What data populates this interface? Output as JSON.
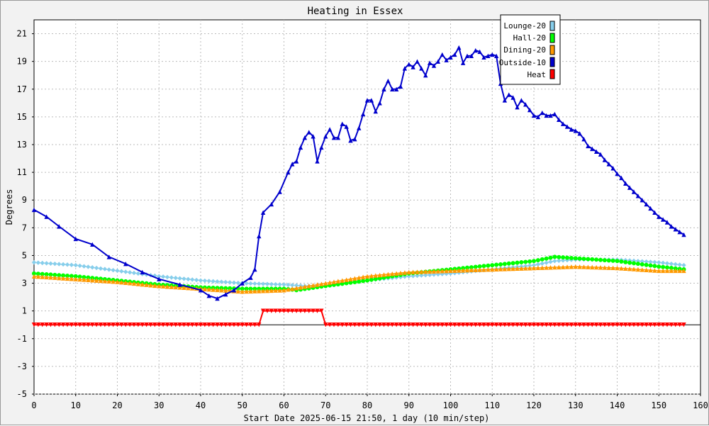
{
  "chart_data": {
    "type": "line",
    "title": "Heating in Essex",
    "xlabel": "Start Date 2025-06-15 21:50, 1 day (10 min/step)",
    "ylabel": "Degrees",
    "xlim": [
      0,
      160
    ],
    "ylim": [
      -5,
      22
    ],
    "x_ticks": [
      0,
      10,
      20,
      30,
      40,
      50,
      60,
      70,
      80,
      90,
      100,
      110,
      120,
      130,
      140,
      150,
      160
    ],
    "y_ticks": [
      -5,
      -3,
      -1,
      1,
      3,
      5,
      7,
      9,
      11,
      13,
      15,
      17,
      19,
      21
    ],
    "grid": true,
    "legend_position": "top-right",
    "series": [
      {
        "name": "Lounge-20",
        "color": "#87ceeb",
        "marker": "diamond",
        "points": [
          [
            0,
            4.5
          ],
          [
            10,
            4.3
          ],
          [
            20,
            3.9
          ],
          [
            30,
            3.5
          ],
          [
            40,
            3.2
          ],
          [
            50,
            3.0
          ],
          [
            60,
            2.9
          ],
          [
            65,
            2.8
          ],
          [
            70,
            2.8
          ],
          [
            80,
            3.2
          ],
          [
            90,
            3.5
          ],
          [
            100,
            3.7
          ],
          [
            110,
            4.0
          ],
          [
            120,
            4.3
          ],
          [
            125,
            4.6
          ],
          [
            130,
            4.7
          ],
          [
            140,
            4.7
          ],
          [
            150,
            4.5
          ],
          [
            156,
            4.3
          ]
        ]
      },
      {
        "name": "Hall-20",
        "color": "#00ff00",
        "marker": "circle",
        "points": [
          [
            0,
            3.7
          ],
          [
            10,
            3.5
          ],
          [
            20,
            3.2
          ],
          [
            30,
            2.9
          ],
          [
            40,
            2.7
          ],
          [
            50,
            2.6
          ],
          [
            60,
            2.6
          ],
          [
            63,
            2.5
          ],
          [
            70,
            2.8
          ],
          [
            80,
            3.2
          ],
          [
            90,
            3.7
          ],
          [
            100,
            4.0
          ],
          [
            110,
            4.3
          ],
          [
            120,
            4.6
          ],
          [
            125,
            4.9
          ],
          [
            130,
            4.8
          ],
          [
            140,
            4.6
          ],
          [
            150,
            4.2
          ],
          [
            156,
            4.0
          ]
        ]
      },
      {
        "name": "Dining-20",
        "color": "#ff9900",
        "marker": "triangle-up",
        "points": [
          [
            0,
            3.5
          ],
          [
            10,
            3.3
          ],
          [
            20,
            3.1
          ],
          [
            30,
            2.8
          ],
          [
            40,
            2.6
          ],
          [
            50,
            2.4
          ],
          [
            60,
            2.5
          ],
          [
            70,
            3.0
          ],
          [
            80,
            3.5
          ],
          [
            90,
            3.8
          ],
          [
            100,
            3.9
          ],
          [
            110,
            4.0
          ],
          [
            120,
            4.1
          ],
          [
            130,
            4.2
          ],
          [
            140,
            4.1
          ],
          [
            150,
            3.9
          ],
          [
            156,
            3.9
          ]
        ]
      },
      {
        "name": "Outside-10",
        "color": "#0000cc",
        "marker": "triangle-up",
        "points": [
          [
            0,
            8.3
          ],
          [
            3,
            7.8
          ],
          [
            6,
            7.1
          ],
          [
            10,
            6.2
          ],
          [
            14,
            5.8
          ],
          [
            18,
            4.9
          ],
          [
            22,
            4.4
          ],
          [
            26,
            3.8
          ],
          [
            30,
            3.3
          ],
          [
            35,
            2.9
          ],
          [
            40,
            2.5
          ],
          [
            42,
            2.1
          ],
          [
            44,
            1.9
          ],
          [
            46,
            2.2
          ],
          [
            48,
            2.5
          ],
          [
            50,
            3.0
          ],
          [
            52,
            3.4
          ],
          [
            53,
            4.0
          ],
          [
            54,
            6.4
          ],
          [
            55,
            8.1
          ],
          [
            57,
            8.7
          ],
          [
            59,
            9.6
          ],
          [
            61,
            11.0
          ],
          [
            62,
            11.6
          ],
          [
            63,
            11.8
          ],
          [
            64,
            12.8
          ],
          [
            65,
            13.5
          ],
          [
            66,
            13.9
          ],
          [
            67,
            13.6
          ],
          [
            68,
            11.8
          ],
          [
            69,
            12.8
          ],
          [
            70,
            13.6
          ],
          [
            71,
            14.1
          ],
          [
            72,
            13.5
          ],
          [
            73,
            13.5
          ],
          [
            74,
            14.5
          ],
          [
            75,
            14.3
          ],
          [
            76,
            13.3
          ],
          [
            77,
            13.4
          ],
          [
            78,
            14.2
          ],
          [
            79,
            15.2
          ],
          [
            80,
            16.2
          ],
          [
            81,
            16.2
          ],
          [
            82,
            15.4
          ],
          [
            83,
            16.0
          ],
          [
            84,
            17.0
          ],
          [
            85,
            17.6
          ],
          [
            86,
            17.0
          ],
          [
            87,
            17.0
          ],
          [
            88,
            17.2
          ],
          [
            89,
            18.5
          ],
          [
            90,
            18.8
          ],
          [
            91,
            18.6
          ],
          [
            92,
            19.0
          ],
          [
            93,
            18.5
          ],
          [
            94,
            18.0
          ],
          [
            95,
            18.9
          ],
          [
            96,
            18.7
          ],
          [
            97,
            19.0
          ],
          [
            98,
            19.5
          ],
          [
            99,
            19.1
          ],
          [
            100,
            19.3
          ],
          [
            101,
            19.5
          ],
          [
            102,
            20.0
          ],
          [
            103,
            18.9
          ],
          [
            104,
            19.4
          ],
          [
            105,
            19.4
          ],
          [
            106,
            19.8
          ],
          [
            107,
            19.7
          ],
          [
            108,
            19.3
          ],
          [
            109,
            19.4
          ],
          [
            110,
            19.5
          ],
          [
            111,
            19.4
          ],
          [
            112,
            17.4
          ],
          [
            113,
            16.2
          ],
          [
            114,
            16.6
          ],
          [
            115,
            16.4
          ],
          [
            116,
            15.7
          ],
          [
            117,
            16.2
          ],
          [
            118,
            15.9
          ],
          [
            119,
            15.5
          ],
          [
            120,
            15.1
          ],
          [
            121,
            15.0
          ],
          [
            122,
            15.3
          ],
          [
            123,
            15.1
          ],
          [
            124,
            15.1
          ],
          [
            125,
            15.2
          ],
          [
            126,
            14.8
          ],
          [
            127,
            14.5
          ],
          [
            128,
            14.3
          ],
          [
            129,
            14.1
          ],
          [
            130,
            14.0
          ],
          [
            131,
            13.8
          ],
          [
            132,
            13.4
          ],
          [
            133,
            12.9
          ],
          [
            134,
            12.7
          ],
          [
            135,
            12.5
          ],
          [
            136,
            12.3
          ],
          [
            137,
            11.9
          ],
          [
            138,
            11.6
          ],
          [
            139,
            11.3
          ],
          [
            140,
            10.9
          ],
          [
            141,
            10.6
          ],
          [
            142,
            10.2
          ],
          [
            143,
            9.9
          ],
          [
            144,
            9.6
          ],
          [
            145,
            9.3
          ],
          [
            146,
            9.0
          ],
          [
            147,
            8.7
          ],
          [
            148,
            8.4
          ],
          [
            149,
            8.1
          ],
          [
            150,
            7.8
          ],
          [
            151,
            7.6
          ],
          [
            152,
            7.4
          ],
          [
            153,
            7.1
          ],
          [
            154,
            6.9
          ],
          [
            155,
            6.7
          ],
          [
            156,
            6.5
          ]
        ]
      },
      {
        "name": "Heat",
        "color": "#ff0000",
        "marker": "triangle-down",
        "points": [
          [
            0,
            0
          ],
          [
            54,
            0
          ],
          [
            55,
            1
          ],
          [
            69,
            1
          ],
          [
            70,
            0
          ],
          [
            156,
            0
          ]
        ]
      }
    ]
  }
}
